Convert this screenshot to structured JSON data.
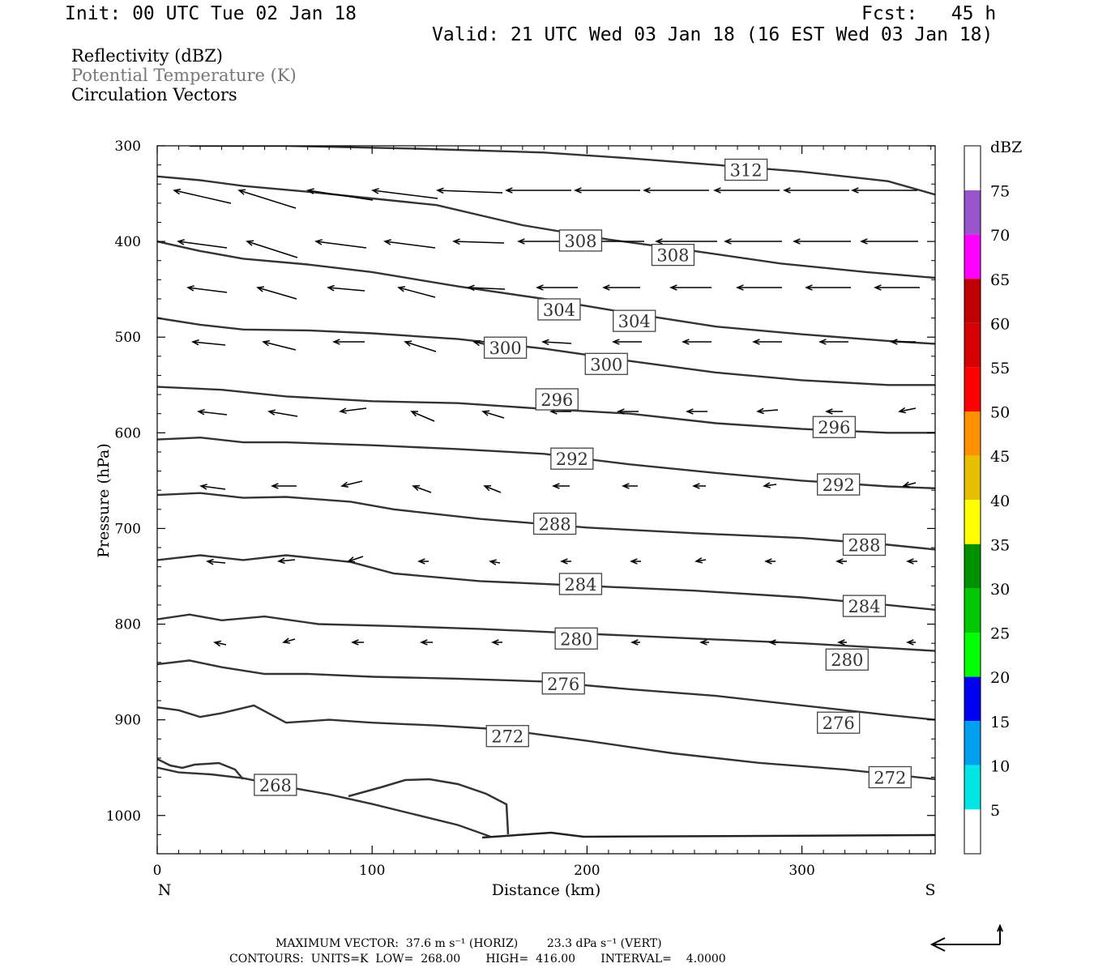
{
  "header": {
    "init": "Init: 00 UTC Tue 02 Jan 18",
    "fcst": "Fcst:   45 h",
    "valid": "Valid: 21 UTC Wed 03 Jan 18 (16 EST Wed 03 Jan 18)"
  },
  "fields": {
    "line1": "Reflectivity (dBZ)",
    "line2": "Potential Temperature (K)",
    "line3": "Circulation Vectors"
  },
  "chart_data": {
    "type": "line",
    "xlabel": "Distance (km)",
    "ylabel": "Pressure (hPa)",
    "xlim": [
      0,
      362
    ],
    "ylim": [
      300,
      1040
    ],
    "xticks": [
      0,
      100,
      200,
      300
    ],
    "yticks": [
      300,
      400,
      500,
      600,
      700,
      800,
      900,
      1000
    ],
    "left_end_label": "N",
    "right_end_label": "S",
    "contour_units": "K",
    "contours": [
      {
        "level": 268,
        "points": [
          [
            0,
            950
          ],
          [
            10,
            955
          ],
          [
            25,
            957
          ],
          [
            40,
            961
          ],
          [
            60,
            970
          ],
          [
            80,
            978
          ],
          [
            100,
            988
          ],
          [
            120,
            999
          ],
          [
            140,
            1010
          ],
          [
            155,
            1022
          ]
        ]
      },
      {
        "level": 272,
        "points": [
          [
            0,
            887
          ],
          [
            10,
            890
          ],
          [
            20,
            897
          ],
          [
            30,
            893
          ],
          [
            45,
            885
          ],
          [
            60,
            903
          ],
          [
            80,
            900
          ],
          [
            100,
            903
          ],
          [
            130,
            906
          ],
          [
            160,
            910
          ],
          [
            200,
            922
          ],
          [
            240,
            935
          ],
          [
            280,
            945
          ],
          [
            320,
            952
          ],
          [
            362,
            962
          ]
        ]
      },
      {
        "level": 276,
        "points": [
          [
            0,
            842
          ],
          [
            15,
            838
          ],
          [
            30,
            845
          ],
          [
            50,
            852
          ],
          [
            70,
            852
          ],
          [
            100,
            855
          ],
          [
            140,
            857
          ],
          [
            180,
            860
          ],
          [
            220,
            868
          ],
          [
            260,
            875
          ],
          [
            300,
            885
          ],
          [
            340,
            895
          ],
          [
            362,
            900
          ]
        ]
      },
      {
        "level": 280,
        "points": [
          [
            0,
            795
          ],
          [
            15,
            790
          ],
          [
            30,
            796
          ],
          [
            50,
            792
          ],
          [
            75,
            800
          ],
          [
            110,
            802
          ],
          [
            150,
            805
          ],
          [
            200,
            810
          ],
          [
            250,
            815
          ],
          [
            300,
            820
          ],
          [
            340,
            825
          ],
          [
            362,
            828
          ]
        ]
      },
      {
        "level": 284,
        "points": [
          [
            0,
            733
          ],
          [
            20,
            728
          ],
          [
            40,
            733
          ],
          [
            60,
            728
          ],
          [
            90,
            735
          ],
          [
            110,
            747
          ],
          [
            150,
            755
          ],
          [
            200,
            760
          ],
          [
            250,
            765
          ],
          [
            300,
            772
          ],
          [
            340,
            780
          ],
          [
            362,
            785
          ]
        ]
      },
      {
        "level": 288,
        "points": [
          [
            0,
            665
          ],
          [
            20,
            663
          ],
          [
            40,
            668
          ],
          [
            60,
            667
          ],
          [
            90,
            672
          ],
          [
            110,
            680
          ],
          [
            150,
            690
          ],
          [
            200,
            699
          ],
          [
            250,
            705
          ],
          [
            300,
            710
          ],
          [
            340,
            717
          ],
          [
            362,
            722
          ]
        ]
      },
      {
        "level": 292,
        "points": [
          [
            0,
            607
          ],
          [
            20,
            605
          ],
          [
            40,
            610
          ],
          [
            60,
            610
          ],
          [
            100,
            613
          ],
          [
            140,
            617
          ],
          [
            180,
            622
          ],
          [
            220,
            633
          ],
          [
            260,
            642
          ],
          [
            300,
            650
          ],
          [
            340,
            656
          ],
          [
            362,
            658
          ]
        ]
      },
      {
        "level": 296,
        "points": [
          [
            0,
            552
          ],
          [
            30,
            555
          ],
          [
            60,
            562
          ],
          [
            100,
            567
          ],
          [
            140,
            569
          ],
          [
            180,
            575
          ],
          [
            220,
            580
          ],
          [
            260,
            590
          ],
          [
            300,
            596
          ],
          [
            340,
            600
          ],
          [
            362,
            600
          ]
        ]
      },
      {
        "level": 300,
        "points": [
          [
            0,
            480
          ],
          [
            20,
            487
          ],
          [
            40,
            492
          ],
          [
            70,
            493
          ],
          [
            100,
            496
          ],
          [
            140,
            502
          ],
          [
            180,
            512
          ],
          [
            220,
            525
          ],
          [
            260,
            537
          ],
          [
            300,
            545
          ],
          [
            340,
            550
          ],
          [
            362,
            550
          ]
        ]
      },
      {
        "level": 304,
        "points": [
          [
            0,
            400
          ],
          [
            20,
            410
          ],
          [
            40,
            418
          ],
          [
            70,
            424
          ],
          [
            100,
            432
          ],
          [
            140,
            447
          ],
          [
            180,
            460
          ],
          [
            220,
            475
          ],
          [
            260,
            489
          ],
          [
            300,
            497
          ],
          [
            340,
            504
          ],
          [
            362,
            507
          ]
        ]
      },
      {
        "level": 308,
        "points": [
          [
            0,
            332
          ],
          [
            20,
            336
          ],
          [
            40,
            342
          ],
          [
            70,
            348
          ],
          [
            100,
            355
          ],
          [
            130,
            362
          ],
          [
            170,
            383
          ],
          [
            210,
            398
          ],
          [
            250,
            410
          ],
          [
            290,
            423
          ],
          [
            330,
            432
          ],
          [
            362,
            438
          ]
        ]
      },
      {
        "level": 312,
        "points": [
          [
            15,
            300
          ],
          [
            60,
            300
          ],
          [
            120,
            303
          ],
          [
            180,
            307
          ],
          [
            220,
            313
          ],
          [
            260,
            320
          ],
          [
            300,
            327
          ],
          [
            340,
            337
          ],
          [
            362,
            351
          ]
        ]
      }
    ],
    "contour_labels": [
      {
        "level": 312,
        "x": 274,
        "y": 325
      },
      {
        "level": 308,
        "x": 197,
        "y": 399
      },
      {
        "level": 308,
        "x": 240,
        "y": 414
      },
      {
        "level": 304,
        "x": 187,
        "y": 471
      },
      {
        "level": 304,
        "x": 222,
        "y": 483
      },
      {
        "level": 300,
        "x": 162,
        "y": 511
      },
      {
        "level": 300,
        "x": 209,
        "y": 528
      },
      {
        "level": 296,
        "x": 186,
        "y": 565
      },
      {
        "level": 296,
        "x": 315,
        "y": 594
      },
      {
        "level": 292,
        "x": 193,
        "y": 627
      },
      {
        "level": 292,
        "x": 317,
        "y": 654
      },
      {
        "level": 288,
        "x": 185,
        "y": 695
      },
      {
        "level": 288,
        "x": 329,
        "y": 717
      },
      {
        "level": 284,
        "x": 197,
        "y": 758
      },
      {
        "level": 284,
        "x": 329,
        "y": 781
      },
      {
        "level": 280,
        "x": 195,
        "y": 815
      },
      {
        "level": 280,
        "x": 321,
        "y": 837
      },
      {
        "level": 276,
        "x": 189,
        "y": 862
      },
      {
        "level": 276,
        "x": 317,
        "y": 903
      },
      {
        "level": 272,
        "x": 163,
        "y": 917
      },
      {
        "level": 272,
        "x": 341,
        "y": 960
      },
      {
        "level": 268,
        "x": 55,
        "y": 968
      }
    ],
    "colorbar": {
      "title": "dBZ",
      "labels": [
        "5",
        "10",
        "15",
        "20",
        "25",
        "30",
        "35",
        "40",
        "45",
        "50",
        "55",
        "60",
        "65",
        "70",
        "75"
      ],
      "colors": [
        "#ffffff",
        "#00e6e6",
        "#00a0f0",
        "#0000f0",
        "#00ff00",
        "#00c800",
        "#009000",
        "#ffff00",
        "#e6bf00",
        "#ff9000",
        "#ff0000",
        "#d60000",
        "#c00000",
        "#ff00ff",
        "#9955cc",
        "#ffffff"
      ]
    },
    "max_vector_horiz": "37.6",
    "max_vector_vert": "23.3"
  },
  "footer": {
    "line1": "MAXIMUM VECTOR:  37.6 m s⁻¹ (HORIZ)        23.3 dPa s⁻¹ (VERT)",
    "line2": "CONTOURS:  UNITS=K  LOW=  268.00       HIGH=  416.00       INTERVAL=    4.0000"
  }
}
